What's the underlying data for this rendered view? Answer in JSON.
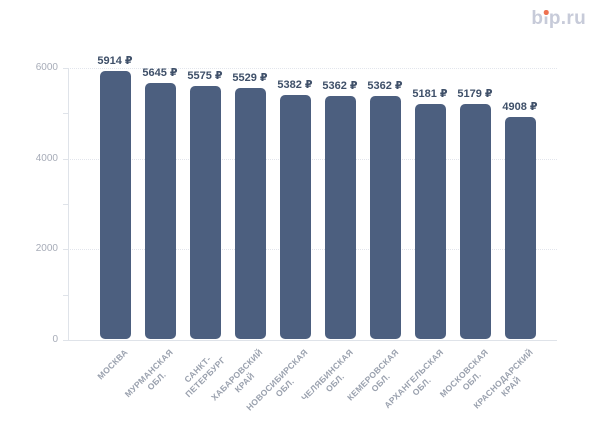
{
  "logo": {
    "parts": [
      "b",
      "i",
      "p.ru"
    ],
    "color": "#c7cbd9",
    "dot_color": "#ee7150"
  },
  "chart_data": {
    "type": "bar",
    "title": "",
    "unit": "₽",
    "categories": [
      "МОСКВА",
      "МУРМАНСКАЯ\nОБЛ.",
      "САНКТ-\nПЕТЕРБУРГ",
      "ХАБАРОВСКИЙ\nКРАЙ",
      "НОВОСИБИРСКАЯ\nОБЛ.",
      "ЧЕЛЯБИНСКАЯ\nОБЛ.",
      "КЕМЕРОВСКАЯ\nОБЛ.",
      "АРХАНГЕЛЬСКАЯ\nОБЛ.",
      "МОСКОВСКАЯ\nОБЛ.",
      "КРАСНОДАРСКИЙ\nКРАЙ"
    ],
    "values": [
      5914,
      5645,
      5575,
      5529,
      5382,
      5362,
      5362,
      5181,
      5179,
      4908
    ],
    "value_labels": [
      "5914 ₽",
      "5645 ₽",
      "5575 ₽",
      "5529 ₽",
      "5382 ₽",
      "5362 ₽",
      "5362 ₽",
      "5181 ₽",
      "5179 ₽",
      "4908 ₽"
    ],
    "xlabel": "",
    "ylabel": "",
    "ylim": [
      0,
      6000
    ],
    "yticks": [
      {
        "value": 0,
        "label": "0"
      },
      {
        "value": 2000,
        "label": "2000"
      },
      {
        "value": 4000,
        "label": "4000"
      },
      {
        "value": 6000,
        "label": "6000"
      }
    ],
    "yticks_minor": [
      1000,
      3000,
      5000
    ],
    "grid": "horizontal dotted lines at 2000/4000/6000",
    "legend": null,
    "category_label_rotation_deg": -45,
    "colors": {
      "bar": "#4c5f7f",
      "value_label": "#3f5069",
      "axis_line": "#dfe3e9",
      "tick_label": "#a7acb8",
      "category_label": "#9aa1ae",
      "grid_line": "#e2e5ec",
      "background": "#ffffff"
    }
  }
}
